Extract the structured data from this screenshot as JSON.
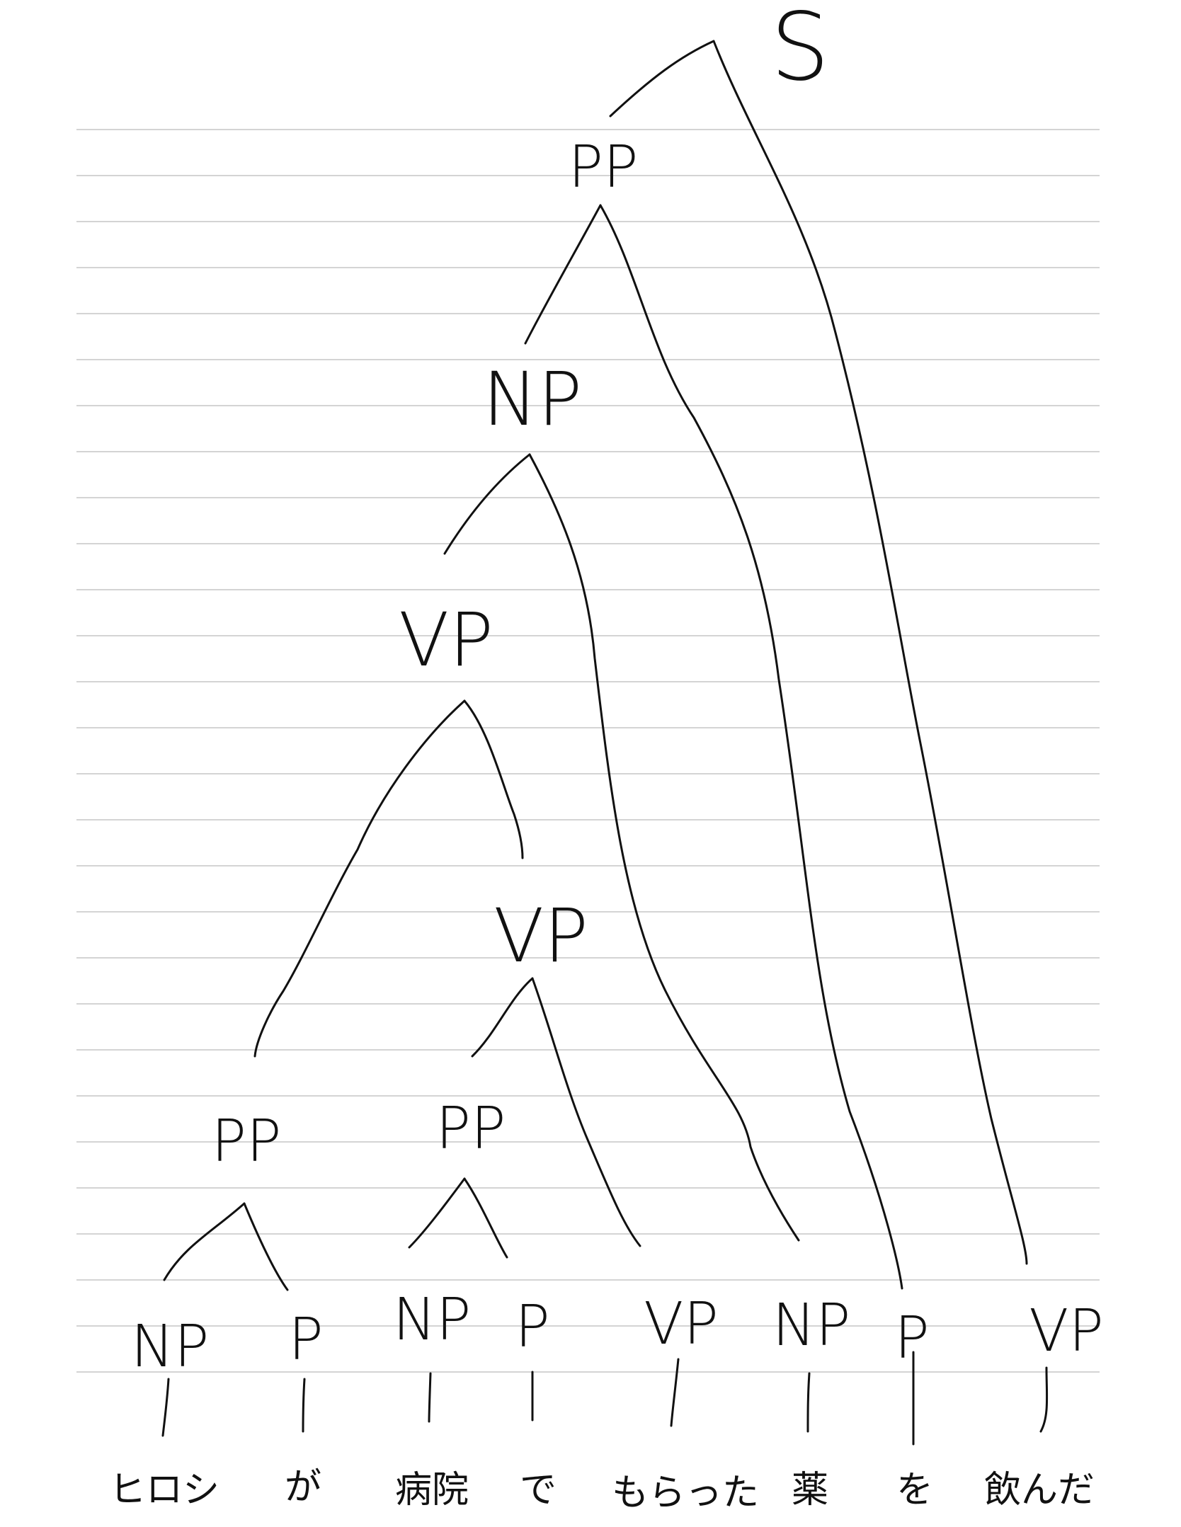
{
  "diagram": {
    "type": "syntax-tree",
    "root": "S",
    "nodes": {
      "s": "S",
      "pp_top": "PP",
      "np_mid": "NP",
      "vp_upper": "VP",
      "vp_lower": "VP",
      "pp_left": "PP",
      "pp_right": "PP",
      "np_1": "NP",
      "p_1": "P",
      "np_2": "NP",
      "p_2": "P",
      "vp_1": "VP",
      "np_3": "NP",
      "p_3": "P",
      "vp_2": "VP"
    },
    "words": [
      "ヒロシ",
      "が",
      "病院",
      "で",
      "もらった",
      "薬",
      "を",
      "飲んだ"
    ]
  }
}
